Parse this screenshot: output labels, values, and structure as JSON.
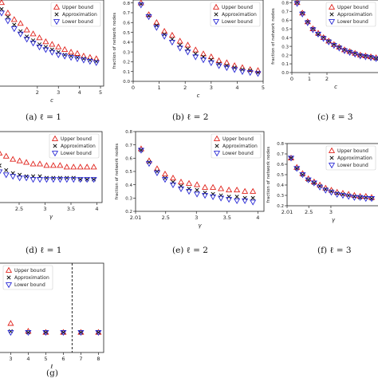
{
  "legend_labels": [
    "Upper bound",
    "Approximation",
    "Lower bound"
  ],
  "colors": {
    "upper": "#e0231c",
    "approx": "#111111",
    "lower": "#2b2bd6",
    "axis": "#222222"
  },
  "chart_data": [
    {
      "id": "a",
      "type": "scatter",
      "caption": "(a) ℓ = 1",
      "xlabel": "c",
      "ylabel": "",
      "xlim": [
        0.15,
        5.15
      ],
      "ylim": [
        0.1,
        0.76
      ],
      "xticks": [
        2,
        3,
        4,
        5
      ],
      "yticks": [],
      "legend": "top-right",
      "x": [
        0.3,
        0.6,
        0.9,
        1.2,
        1.5,
        1.8,
        2.1,
        2.4,
        2.7,
        3.0,
        3.3,
        3.6,
        3.9,
        4.2,
        4.5,
        4.8
      ],
      "upper": [
        0.74,
        0.66,
        0.61,
        0.58,
        0.53,
        0.5,
        0.47,
        0.44,
        0.42,
        0.4,
        0.38,
        0.36,
        0.35,
        0.33,
        0.32,
        0.31
      ],
      "approx": [
        0.69,
        0.63,
        0.57,
        0.52,
        0.48,
        0.45,
        0.42,
        0.4,
        0.38,
        0.36,
        0.34,
        0.33,
        0.32,
        0.31,
        0.3,
        0.29
      ],
      "lower": [
        0.66,
        0.6,
        0.54,
        0.5,
        0.46,
        0.43,
        0.4,
        0.38,
        0.36,
        0.34,
        0.33,
        0.32,
        0.31,
        0.3,
        0.29,
        0.28
      ]
    },
    {
      "id": "b",
      "type": "scatter",
      "caption": "(b) ℓ = 2",
      "xlabel": "c",
      "ylabel": "fraction of network nodes",
      "xlim": [
        0,
        5
      ],
      "ylim": [
        0,
        0.83
      ],
      "xticks": [
        0,
        1,
        2,
        3,
        4,
        5
      ],
      "yticks": [
        0.0,
        0.1,
        0.2,
        0.3,
        0.4,
        0.5,
        0.6,
        0.7,
        0.8
      ],
      "legend": "top-right",
      "x": [
        0.3,
        0.6,
        0.9,
        1.2,
        1.5,
        1.8,
        2.1,
        2.4,
        2.7,
        3.0,
        3.3,
        3.6,
        3.9,
        4.2,
        4.5,
        4.8
      ],
      "upper": [
        0.8,
        0.68,
        0.6,
        0.51,
        0.47,
        0.41,
        0.37,
        0.32,
        0.28,
        0.25,
        0.21,
        0.19,
        0.16,
        0.14,
        0.12,
        0.11
      ],
      "approx": [
        0.79,
        0.67,
        0.57,
        0.48,
        0.43,
        0.37,
        0.33,
        0.28,
        0.25,
        0.22,
        0.18,
        0.16,
        0.14,
        0.12,
        0.11,
        0.09
      ],
      "lower": [
        0.78,
        0.66,
        0.55,
        0.46,
        0.4,
        0.34,
        0.3,
        0.25,
        0.22,
        0.19,
        0.16,
        0.14,
        0.12,
        0.1,
        0.09,
        0.08
      ]
    },
    {
      "id": "c",
      "type": "scatter",
      "caption": "(c) ℓ = 3",
      "xlabel": "c",
      "ylabel": "fraction of network nodes",
      "xlim": [
        0,
        5
      ],
      "ylim": [
        0,
        0.83
      ],
      "xticks": [
        0,
        1,
        2
      ],
      "yticks": [
        0.0,
        0.1,
        0.2,
        0.3,
        0.4,
        0.5,
        0.6,
        0.7,
        0.8
      ],
      "legend": "top-right",
      "x": [
        0.3,
        0.6,
        0.9,
        1.2,
        1.5,
        1.8,
        2.1,
        2.4,
        2.7,
        3.0,
        3.3,
        3.6,
        3.9,
        4.2,
        4.5,
        4.8
      ],
      "upper": [
        0.8,
        0.68,
        0.58,
        0.5,
        0.45,
        0.4,
        0.36,
        0.32,
        0.29,
        0.26,
        0.24,
        0.22,
        0.2,
        0.19,
        0.18,
        0.17
      ],
      "approx": [
        0.8,
        0.68,
        0.58,
        0.5,
        0.44,
        0.4,
        0.36,
        0.32,
        0.29,
        0.26,
        0.24,
        0.22,
        0.2,
        0.19,
        0.18,
        0.16
      ],
      "lower": [
        0.79,
        0.67,
        0.57,
        0.49,
        0.44,
        0.39,
        0.35,
        0.31,
        0.28,
        0.25,
        0.23,
        0.21,
        0.19,
        0.18,
        0.17,
        0.16
      ]
    },
    {
      "id": "d",
      "type": "scatter",
      "caption": "(d) ℓ = 1",
      "xlabel": "γ",
      "ylabel": "",
      "xlim": [
        2.1,
        4.1
      ],
      "ylim": [
        0.36,
        0.82
      ],
      "xticks": [
        2.5,
        3,
        3.5,
        4
      ],
      "xtick_labels": [
        "2.5",
        "3",
        "3.5",
        "4"
      ],
      "yticks": [],
      "legend": "top-right",
      "x": [
        2.12,
        2.25,
        2.38,
        2.51,
        2.64,
        2.77,
        2.9,
        3.03,
        3.16,
        3.29,
        3.42,
        3.55,
        3.68,
        3.81,
        3.94
      ],
      "upper": [
        0.68,
        0.66,
        0.64,
        0.63,
        0.62,
        0.61,
        0.61,
        0.6,
        0.6,
        0.6,
        0.59,
        0.59,
        0.59,
        0.59,
        0.59
      ],
      "approx": [
        0.6,
        0.57,
        0.55,
        0.54,
        0.53,
        0.53,
        0.53,
        0.52,
        0.52,
        0.52,
        0.52,
        0.52,
        0.51,
        0.51,
        0.51
      ],
      "lower": [
        0.56,
        0.54,
        0.53,
        0.52,
        0.52,
        0.51,
        0.51,
        0.51,
        0.51,
        0.51,
        0.51,
        0.51,
        0.51,
        0.51,
        0.51
      ]
    },
    {
      "id": "e",
      "type": "scatter",
      "caption": "(e) ℓ = 2",
      "xlabel": "γ",
      "ylabel": "fraction of network nodes",
      "xlim": [
        2.01,
        4.1
      ],
      "ylim": [
        0.2,
        0.8
      ],
      "xticks": [
        2.01,
        2.5,
        3,
        3.5,
        4
      ],
      "xtick_labels": [
        "2.01",
        "2.5",
        "3",
        "3.5",
        "4"
      ],
      "yticks": [
        0.2,
        0.3,
        0.4,
        0.5,
        0.6,
        0.7,
        0.8
      ],
      "legend": "top-right",
      "x": [
        2.1,
        2.23,
        2.36,
        2.49,
        2.62,
        2.75,
        2.88,
        3.01,
        3.14,
        3.27,
        3.4,
        3.53,
        3.66,
        3.79,
        3.92
      ],
      "upper": [
        0.67,
        0.58,
        0.52,
        0.48,
        0.45,
        0.42,
        0.41,
        0.4,
        0.38,
        0.38,
        0.37,
        0.36,
        0.36,
        0.35,
        0.35
      ],
      "approx": [
        0.66,
        0.57,
        0.5,
        0.45,
        0.42,
        0.39,
        0.37,
        0.36,
        0.34,
        0.33,
        0.32,
        0.31,
        0.31,
        0.3,
        0.3
      ],
      "lower": [
        0.66,
        0.56,
        0.49,
        0.44,
        0.4,
        0.37,
        0.35,
        0.33,
        0.32,
        0.31,
        0.3,
        0.29,
        0.28,
        0.28,
        0.27
      ]
    },
    {
      "id": "f",
      "type": "scatter",
      "caption": "(f) ℓ = 3",
      "xlabel": "γ",
      "ylabel": "fraction of network nodes",
      "xlim": [
        2.01,
        4.1
      ],
      "ylim": [
        0.2,
        0.8
      ],
      "xticks": [
        2.01,
        2.5,
        3
      ],
      "xtick_labels": [
        "2.01",
        "2.5",
        "3"
      ],
      "yticks": [
        0.2,
        0.3,
        0.4,
        0.5,
        0.6,
        0.7,
        0.8
      ],
      "legend": "top-right",
      "x": [
        2.1,
        2.23,
        2.36,
        2.49,
        2.62,
        2.75,
        2.88,
        3.01,
        3.14,
        3.27,
        3.4,
        3.53,
        3.66,
        3.79,
        3.92
      ],
      "upper": [
        0.66,
        0.57,
        0.51,
        0.46,
        0.43,
        0.4,
        0.37,
        0.35,
        0.33,
        0.32,
        0.31,
        0.3,
        0.29,
        0.29,
        0.28
      ],
      "approx": [
        0.66,
        0.56,
        0.5,
        0.45,
        0.42,
        0.39,
        0.36,
        0.34,
        0.32,
        0.31,
        0.3,
        0.29,
        0.28,
        0.28,
        0.27
      ],
      "lower": [
        0.66,
        0.56,
        0.5,
        0.45,
        0.42,
        0.38,
        0.35,
        0.33,
        0.31,
        0.3,
        0.29,
        0.28,
        0.28,
        0.27,
        0.27
      ]
    },
    {
      "id": "g",
      "type": "scatter",
      "caption": "(g)",
      "xlabel": "ℓ",
      "ylabel": "",
      "xlim": [
        2.3,
        8.3
      ],
      "ylim": [
        0.1,
        0.9
      ],
      "xticks": [
        3,
        4,
        5,
        6,
        7,
        8
      ],
      "yticks": [],
      "legend": "top-left",
      "vline_x": 6.5,
      "x": [
        3,
        4,
        5,
        6,
        7,
        8
      ],
      "upper": [
        0.36,
        0.29,
        0.28,
        0.28,
        0.28,
        0.28
      ],
      "approx": [
        0.29,
        0.28,
        0.28,
        0.28,
        0.28,
        0.28
      ],
      "lower": [
        0.28,
        0.28,
        0.28,
        0.28,
        0.28,
        0.28
      ]
    }
  ]
}
